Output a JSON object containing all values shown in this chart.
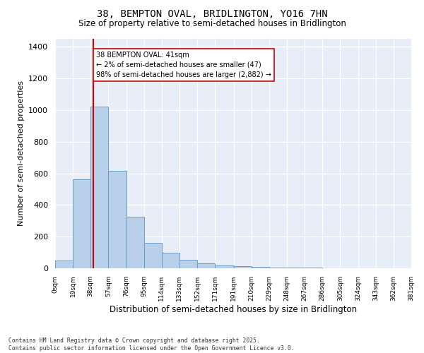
{
  "title": "38, BEMPTON OVAL, BRIDLINGTON, YO16 7HN",
  "subtitle": "Size of property relative to semi-detached houses in Bridlington",
  "xlabel": "Distribution of semi-detached houses by size in Bridlington",
  "ylabel": "Number of semi-detached properties",
  "footnote1": "Contains HM Land Registry data © Crown copyright and database right 2025.",
  "footnote2": "Contains public sector information licensed under the Open Government Licence v3.0.",
  "annotation_line1": "38 BEMPTON OVAL: 41sqm",
  "annotation_line2": "← 2% of semi-detached houses are smaller (47)",
  "annotation_line3": "98% of semi-detached houses are larger (2,882) →",
  "bar_color": "#b8d0ea",
  "bar_edge_color": "#6a9fcb",
  "red_line_color": "#cc0000",
  "background_color": "#e8eef8",
  "grid_color": "#ffffff",
  "bin_edges": [
    0,
    19,
    38,
    57,
    76,
    95,
    114,
    133,
    152,
    171,
    191,
    210,
    229,
    248,
    267,
    286,
    305,
    324,
    343,
    362,
    381
  ],
  "bin_labels": [
    "0sqm",
    "19sqm",
    "38sqm",
    "57sqm",
    "76sqm",
    "95sqm",
    "114sqm",
    "133sqm",
    "152sqm",
    "171sqm",
    "191sqm",
    "210sqm",
    "229sqm",
    "248sqm",
    "267sqm",
    "286sqm",
    "305sqm",
    "324sqm",
    "343sqm",
    "362sqm",
    "381sqm"
  ],
  "bar_heights": [
    47,
    560,
    1020,
    615,
    325,
    160,
    100,
    55,
    30,
    20,
    15,
    10,
    5,
    3,
    3,
    2,
    2,
    1,
    1,
    1
  ],
  "property_size": 41,
  "ylim": [
    0,
    1450
  ],
  "yticks": [
    0,
    200,
    400,
    600,
    800,
    1000,
    1200,
    1400
  ],
  "figsize": [
    6.0,
    5.0
  ],
  "dpi": 100
}
